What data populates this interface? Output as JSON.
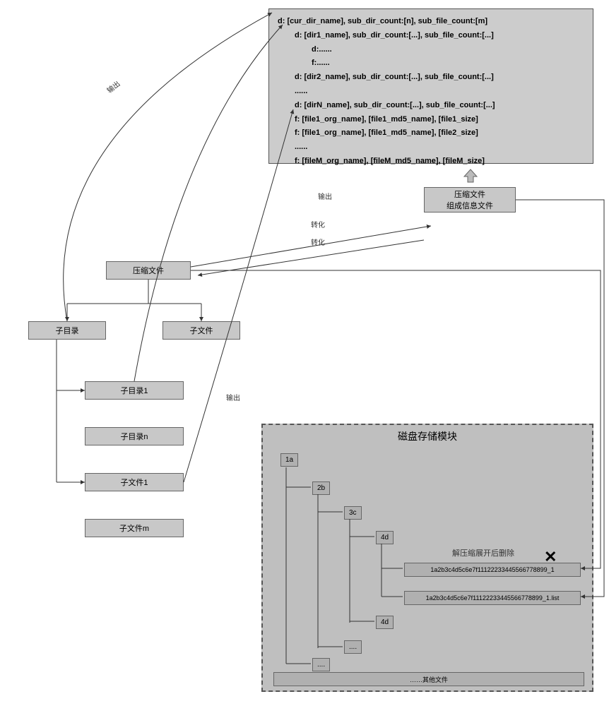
{
  "info_panel": {
    "lines": [
      {
        "text": "d: [cur_dir_name], sub_dir_count:[n], sub_file_count:[m]",
        "indent": 0
      },
      {
        "text": "d: [dir1_name], sub_dir_count:[...], sub_file_count:[...]",
        "indent": 1
      },
      {
        "text": "d:......",
        "indent": 2
      },
      {
        "text": "f:......",
        "indent": 2
      },
      {
        "text": "d: [dir2_name], sub_dir_count:[...], sub_file_count:[...]",
        "indent": 1
      },
      {
        "text": "......",
        "indent": 1
      },
      {
        "text": "d: [dirN_name], sub_dir_count:[...], sub_file_count:[...]",
        "indent": 1
      },
      {
        "text": "f: [file1_org_name], [file1_md5_name], [file1_size]",
        "indent": 1
      },
      {
        "text": "f: [file1_org_name], [file1_md5_name], [file2_size]",
        "indent": 1
      },
      {
        "text": "......",
        "indent": 1
      },
      {
        "text": "f: [fileM_org_name], [fileM_md5_name], [fileM_size]",
        "indent": 1
      }
    ]
  },
  "labels": {
    "output1": "输出",
    "output2": "输出",
    "output3": "输出",
    "transform1": "转化",
    "transform2": "转化",
    "delete_after": "解压缩展开后删除"
  },
  "boxes": {
    "compress_info": "压缩文件\n组成信息文件",
    "compress_file": "压缩文件",
    "subdir": "子目录",
    "subfile": "子文件",
    "subdir1": "子目录1",
    "subdirn": "子目录n",
    "subfile1": "子文件1",
    "subfilem": "子文件m"
  },
  "disk": {
    "title": "磁盘存储模块",
    "nodes": {
      "n1": "1a",
      "n2": "2b",
      "n3": "3c",
      "n4a": "4d",
      "n4b": "4d",
      "dots1": "....",
      "dots2": "...."
    },
    "file1": "1a2b3c4d5c6e7f11122233445566778899_1",
    "file2": "1a2b3c4d5c6e7f11122233445566778899_1.list",
    "other": "……其他文件"
  },
  "colors": {
    "panel_bg": "#cccccc",
    "box_bg": "#c8c8c8",
    "disk_bg": "#bfbfbf",
    "node_bg": "#b0b0b0",
    "border": "#666666"
  }
}
